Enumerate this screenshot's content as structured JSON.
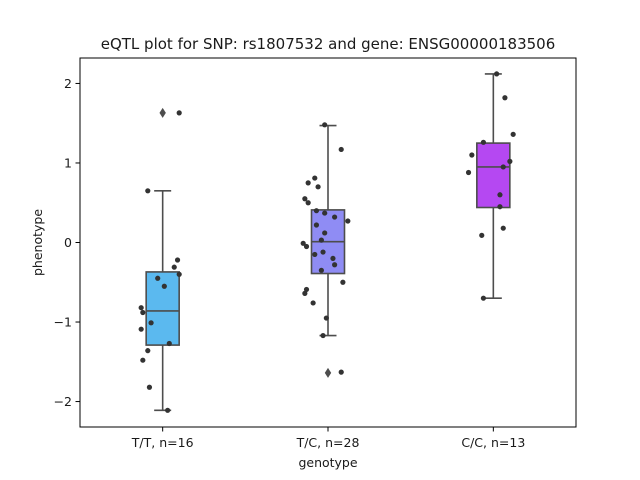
{
  "chart_data": {
    "type": "box",
    "title": "eQTL plot for SNP: rs1807532 and gene: ENSG00000183506",
    "xlabel": "genotype",
    "ylabel": "phenotype",
    "ylim": [
      -2.32,
      2.32
    ],
    "yticks": [
      -2,
      -1,
      0,
      1,
      2
    ],
    "yticklabels": [
      "−2",
      "−1",
      "0",
      "1",
      "2"
    ],
    "grid": false,
    "colors": {
      "box_outline": "#4d4d4d",
      "points": "#333333"
    },
    "groups": [
      {
        "category": "T/T, n=16",
        "color": "#5bb9ef",
        "box": {
          "q1": -1.29,
          "median": -0.86,
          "q3": -0.37,
          "whisker_low": -2.11,
          "whisker_high": 0.65
        },
        "outliers": [
          1.63
        ],
        "points": [
          {
            "x": 0.1,
            "y": 1.63
          },
          {
            "x": -0.09,
            "y": 0.65
          },
          {
            "x": 0.09,
            "y": -0.22
          },
          {
            "x": 0.07,
            "y": -0.31
          },
          {
            "x": 0.1,
            "y": -0.4
          },
          {
            "x": -0.03,
            "y": -0.45
          },
          {
            "x": 0.01,
            "y": -0.55
          },
          {
            "x": -0.13,
            "y": -0.82
          },
          {
            "x": -0.12,
            "y": -0.88
          },
          {
            "x": -0.07,
            "y": -1.01
          },
          {
            "x": -0.13,
            "y": -1.09
          },
          {
            "x": 0.04,
            "y": -1.27
          },
          {
            "x": -0.09,
            "y": -1.36
          },
          {
            "x": -0.12,
            "y": -1.48
          },
          {
            "x": -0.08,
            "y": -1.82
          },
          {
            "x": 0.03,
            "y": -2.11
          }
        ]
      },
      {
        "category": "T/C, n=28",
        "color": "#8f8cf4",
        "box": {
          "q1": -0.39,
          "median": 0.01,
          "q3": 0.41,
          "whisker_low": -1.17,
          "whisker_high": 1.47
        },
        "outliers": [
          -1.64
        ],
        "points": [
          {
            "x": -0.02,
            "y": 1.48
          },
          {
            "x": 0.08,
            "y": 1.17
          },
          {
            "x": -0.08,
            "y": 0.81
          },
          {
            "x": -0.12,
            "y": 0.75
          },
          {
            "x": -0.06,
            "y": 0.7
          },
          {
            "x": -0.14,
            "y": 0.55
          },
          {
            "x": -0.12,
            "y": 0.5
          },
          {
            "x": -0.02,
            "y": 0.37
          },
          {
            "x": 0.04,
            "y": 0.32
          },
          {
            "x": 0.12,
            "y": 0.27
          },
          {
            "x": -0.07,
            "y": 0.22
          },
          {
            "x": -0.02,
            "y": 0.12
          },
          {
            "x": -0.04,
            "y": 0.03
          },
          {
            "x": -0.15,
            "y": -0.01
          },
          {
            "x": -0.13,
            "y": -0.05
          },
          {
            "x": -0.03,
            "y": -0.12
          },
          {
            "x": -0.08,
            "y": -0.15
          },
          {
            "x": 0.03,
            "y": -0.2
          },
          {
            "x": 0.04,
            "y": -0.28
          },
          {
            "x": -0.04,
            "y": -0.35
          },
          {
            "x": 0.09,
            "y": -0.5
          },
          {
            "x": -0.13,
            "y": -0.59
          },
          {
            "x": -0.14,
            "y": -0.64
          },
          {
            "x": -0.09,
            "y": -0.76
          },
          {
            "x": -0.01,
            "y": -0.95
          },
          {
            "x": -0.03,
            "y": -1.17
          },
          {
            "x": 0.08,
            "y": -1.63
          },
          {
            "x": -0.07,
            "y": 0.4
          }
        ]
      },
      {
        "category": "C/C, n=13",
        "color": "#b548f2",
        "box": {
          "q1": 0.44,
          "median": 0.95,
          "q3": 1.25,
          "whisker_low": -0.7,
          "whisker_high": 2.12
        },
        "outliers": [],
        "points": [
          {
            "x": 0.02,
            "y": 2.12
          },
          {
            "x": 0.07,
            "y": 1.82
          },
          {
            "x": 0.12,
            "y": 1.36
          },
          {
            "x": -0.06,
            "y": 1.26
          },
          {
            "x": -0.13,
            "y": 1.1
          },
          {
            "x": 0.1,
            "y": 1.02
          },
          {
            "x": 0.06,
            "y": 0.95
          },
          {
            "x": -0.15,
            "y": 0.88
          },
          {
            "x": 0.04,
            "y": 0.6
          },
          {
            "x": 0.04,
            "y": 0.45
          },
          {
            "x": 0.06,
            "y": 0.18
          },
          {
            "x": -0.07,
            "y": 0.09
          },
          {
            "x": -0.06,
            "y": -0.7
          }
        ]
      }
    ]
  }
}
